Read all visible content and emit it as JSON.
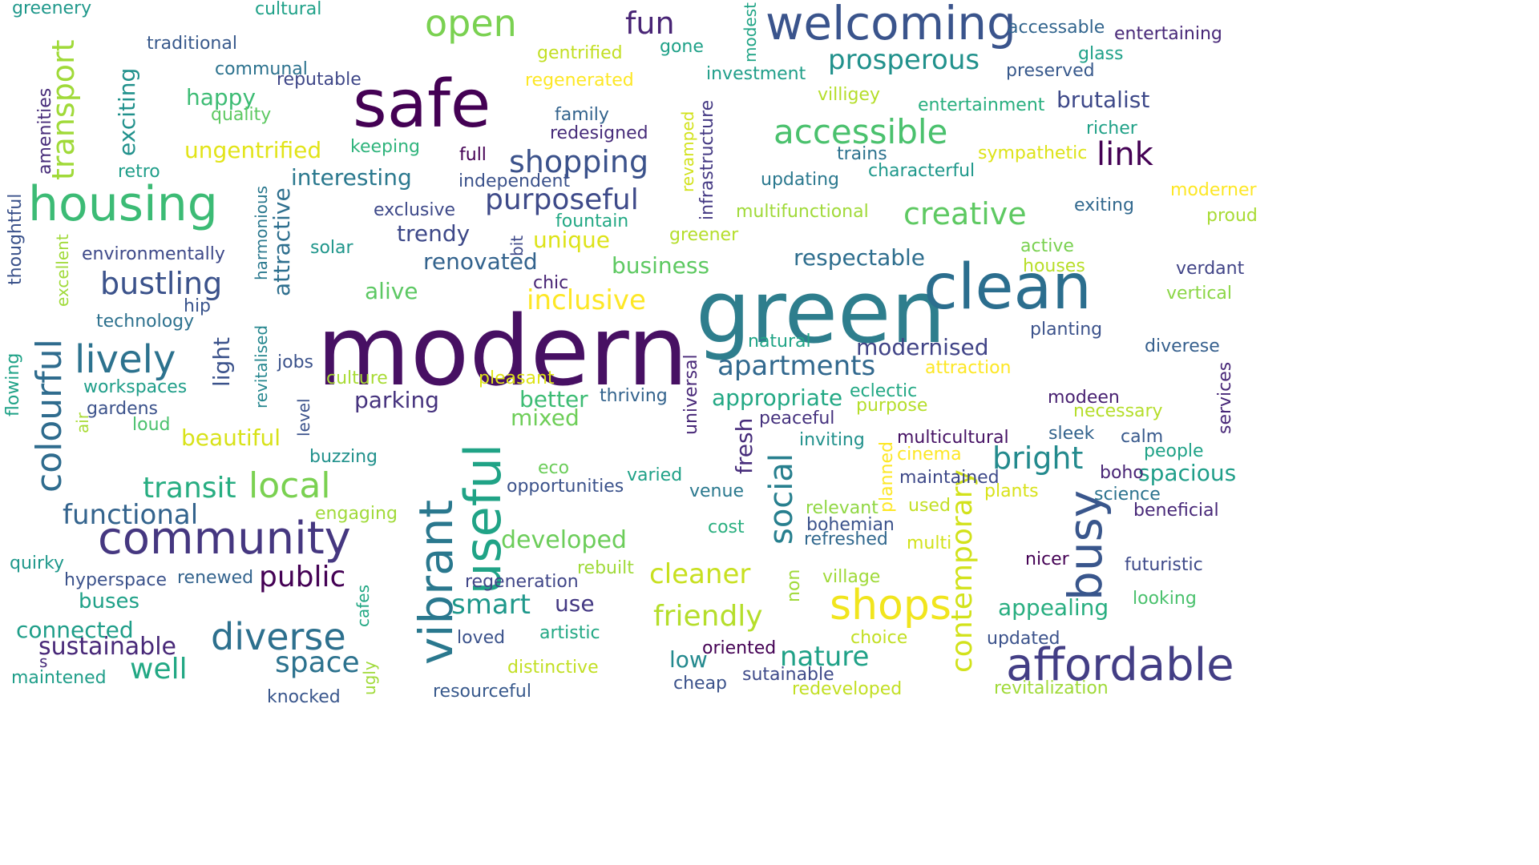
{
  "word_cloud": {
    "words": [
      {
        "text": "modern",
        "color": "#471063"
      },
      {
        "text": "green",
        "color": "#2e7e8d"
      },
      {
        "text": "safe",
        "color": "#440154"
      },
      {
        "text": "clean",
        "color": "#2b6e8e"
      },
      {
        "text": "welcoming",
        "color": "#3a548c"
      },
      {
        "text": "housing",
        "color": "#3cbb75"
      },
      {
        "text": "community",
        "color": "#453780"
      },
      {
        "text": "vibrant",
        "color": "#2a788e"
      },
      {
        "text": "useful",
        "color": "#20a386"
      },
      {
        "text": "affordable",
        "color": "#433e85"
      },
      {
        "text": "busy",
        "color": "#39568c"
      },
      {
        "text": "shops",
        "color": "#f1e51d"
      },
      {
        "text": "lively",
        "color": "#2c728e"
      },
      {
        "text": "diverse",
        "color": "#2d708e"
      },
      {
        "text": "open",
        "color": "#7ad151"
      },
      {
        "text": "accessible",
        "color": "#4ac16d"
      },
      {
        "text": "colourful",
        "color": "#2f6c8e"
      },
      {
        "text": "creative",
        "color": "#5ec962"
      },
      {
        "text": "bustling",
        "color": "#3b528b"
      },
      {
        "text": "link",
        "color": "#440154"
      },
      {
        "text": "local",
        "color": "#7ad151"
      },
      {
        "text": "prosperous",
        "color": "#21918c"
      },
      {
        "text": "shopping",
        "color": "#3b528b"
      },
      {
        "text": "transport",
        "color": "#a0da39"
      },
      {
        "text": "fun",
        "color": "#482475"
      },
      {
        "text": "functional",
        "color": "#33638d"
      },
      {
        "text": "transit",
        "color": "#27ad81"
      },
      {
        "text": "social",
        "color": "#277f8e"
      },
      {
        "text": "contemporary",
        "color": "#d2e21b"
      },
      {
        "text": "apartments",
        "color": "#31688e"
      },
      {
        "text": "purposeful",
        "color": "#3e4a89"
      },
      {
        "text": "friendly",
        "color": "#b5de2b"
      },
      {
        "text": "inclusive",
        "color": "#fde725"
      },
      {
        "text": "public",
        "color": "#440154"
      },
      {
        "text": "space",
        "color": "#2c728e"
      },
      {
        "text": "sustainable",
        "color": "#482878"
      },
      {
        "text": "nature",
        "color": "#1fa187"
      },
      {
        "text": "cleaner",
        "color": "#c8e020"
      },
      {
        "text": "bright",
        "color": "#238a8d"
      },
      {
        "text": "well",
        "color": "#22a884"
      },
      {
        "text": "ungentrified",
        "color": "#e2e418"
      },
      {
        "text": "smart",
        "color": "#1f988b"
      },
      {
        "text": "spacious",
        "color": "#1f9e89"
      },
      {
        "text": "connected",
        "color": "#1f9e89"
      },
      {
        "text": "appealing",
        "color": "#28ae80"
      },
      {
        "text": "exciting",
        "color": "#21918c"
      },
      {
        "text": "interesting",
        "color": "#2a788e"
      },
      {
        "text": "renovated",
        "color": "#33638d"
      },
      {
        "text": "respectable",
        "color": "#2e6e8e"
      },
      {
        "text": "appropriate",
        "color": "#22a884"
      },
      {
        "text": "brutalist",
        "color": "#3e4989"
      },
      {
        "text": "modernised",
        "color": "#414487"
      },
      {
        "text": "developed",
        "color": "#6ccd5a"
      },
      {
        "text": "beautiful",
        "color": "#d8e219"
      },
      {
        "text": "business",
        "color": "#5ec962"
      },
      {
        "text": "parking",
        "color": "#46337e"
      },
      {
        "text": "mixed",
        "color": "#6ece58"
      },
      {
        "text": "trendy",
        "color": "#3e4989"
      },
      {
        "text": "unique",
        "color": "#dde318"
      },
      {
        "text": "attractive",
        "color": "#2e6f8e"
      },
      {
        "text": "fresh",
        "color": "#472d7b"
      },
      {
        "text": "low",
        "color": "#23898e"
      },
      {
        "text": "happy",
        "color": "#3dbc74"
      },
      {
        "text": "alive",
        "color": "#5cc863"
      },
      {
        "text": "better",
        "color": "#3dbc74"
      },
      {
        "text": "buses",
        "color": "#1fa188"
      },
      {
        "text": "use",
        "color": "#443983"
      },
      {
        "text": "light",
        "color": "#3b528b"
      },
      {
        "text": "revitalised",
        "color": "#24868e"
      },
      {
        "text": "harmonious",
        "color": "#2a788e"
      },
      {
        "text": "thriving",
        "color": "#33638d"
      },
      {
        "text": "eclectic",
        "color": "#22a884"
      },
      {
        "text": "infrastructure",
        "color": "#443983"
      },
      {
        "text": "oriented",
        "color": "#440154"
      },
      {
        "text": "multicultural",
        "color": "#471365"
      },
      {
        "text": "inviting",
        "color": "#21918c"
      },
      {
        "text": "peaceful",
        "color": "#46327e"
      },
      {
        "text": "regeneration",
        "color": "#404688"
      },
      {
        "text": "gentrified",
        "color": "#c2df23"
      },
      {
        "text": "regenerated",
        "color": "#fde725"
      },
      {
        "text": "entertaining",
        "color": "#482878"
      },
      {
        "text": "entertainment",
        "color": "#29af7f"
      },
      {
        "text": "characterful",
        "color": "#1f988b"
      },
      {
        "text": "sympathetic",
        "color": "#dde318"
      },
      {
        "text": "investment",
        "color": "#1f9e89"
      },
      {
        "text": "villigey",
        "color": "#b5de2b"
      },
      {
        "text": "accessable",
        "color": "#32658e"
      },
      {
        "text": "preserved",
        "color": "#38598c"
      },
      {
        "text": "glass",
        "color": "#1fa188"
      },
      {
        "text": "richer",
        "color": "#1fa187"
      },
      {
        "text": "trains",
        "color": "#2c728e"
      },
      {
        "text": "updating",
        "color": "#2a788e"
      },
      {
        "text": "multifunctional",
        "color": "#a0da39"
      },
      {
        "text": "exiting",
        "color": "#31688e"
      },
      {
        "text": "moderner",
        "color": "#fde725"
      },
      {
        "text": "proud",
        "color": "#a8db34"
      },
      {
        "text": "active",
        "color": "#7ad151"
      },
      {
        "text": "houses",
        "color": "#b8de29"
      },
      {
        "text": "verdant",
        "color": "#414487"
      },
      {
        "text": "vertical",
        "color": "#8bd646"
      },
      {
        "text": "planting",
        "color": "#3b528b"
      },
      {
        "text": "diverese",
        "color": "#355f8d"
      },
      {
        "text": "attraction",
        "color": "#fde725"
      },
      {
        "text": "natural",
        "color": "#20a486"
      },
      {
        "text": "modeen",
        "color": "#482071"
      },
      {
        "text": "necessary",
        "color": "#b5de2b"
      },
      {
        "text": "purpose",
        "color": "#b5de2b"
      },
      {
        "text": "sleek",
        "color": "#33638d"
      },
      {
        "text": "calm",
        "color": "#38598c"
      },
      {
        "text": "people",
        "color": "#1fa287"
      },
      {
        "text": "cinema",
        "color": "#fde725"
      },
      {
        "text": "maintained",
        "color": "#3e4989"
      },
      {
        "text": "boho",
        "color": "#482475"
      },
      {
        "text": "plants",
        "color": "#d8e219"
      },
      {
        "text": "science",
        "color": "#2c728e"
      },
      {
        "text": "relevant",
        "color": "#90d743"
      },
      {
        "text": "used",
        "color": "#c2df23"
      },
      {
        "text": "beneficial",
        "color": "#482878"
      },
      {
        "text": "bohemian",
        "color": "#3b528b"
      },
      {
        "text": "refreshed",
        "color": "#31688e"
      },
      {
        "text": "multi",
        "color": "#d2e21b"
      },
      {
        "text": "nicer",
        "color": "#440154"
      },
      {
        "text": "futuristic",
        "color": "#3e4a89"
      },
      {
        "text": "village",
        "color": "#a0da39"
      },
      {
        "text": "looking",
        "color": "#4ac16d"
      },
      {
        "text": "updated",
        "color": "#3b528b"
      },
      {
        "text": "choice",
        "color": "#c2df23"
      },
      {
        "text": "sutainable",
        "color": "#3e4a89"
      },
      {
        "text": "redeveloped",
        "color": "#c2df23"
      },
      {
        "text": "revitalization",
        "color": "#a0da39"
      },
      {
        "text": "cheap",
        "color": "#3b528b"
      },
      {
        "text": "greenery",
        "color": "#1f988b"
      },
      {
        "text": "cultural",
        "color": "#1fa188"
      },
      {
        "text": "traditional",
        "color": "#38598c"
      },
      {
        "text": "communal",
        "color": "#2c728e"
      },
      {
        "text": "reputable",
        "color": "#3f4788"
      },
      {
        "text": "quality",
        "color": "#5ec962"
      },
      {
        "text": "keeping",
        "color": "#2fb47c"
      },
      {
        "text": "retro",
        "color": "#1f9e89"
      },
      {
        "text": "amenities",
        "color": "#472c7a"
      },
      {
        "text": "environmentally",
        "color": "#3e4989"
      },
      {
        "text": "excellent",
        "color": "#a0da39"
      },
      {
        "text": "thoughtful",
        "color": "#3b528b"
      },
      {
        "text": "solar",
        "color": "#1f968b"
      },
      {
        "text": "hip",
        "color": "#3a548c"
      },
      {
        "text": "technology",
        "color": "#2d718e"
      },
      {
        "text": "flowing",
        "color": "#1fa287"
      },
      {
        "text": "workspaces",
        "color": "#1f9e89"
      },
      {
        "text": "gardens",
        "color": "#3b528b"
      },
      {
        "text": "air",
        "color": "#a8db34"
      },
      {
        "text": "loud",
        "color": "#4ac16d"
      },
      {
        "text": "jobs",
        "color": "#3b528b"
      },
      {
        "text": "culture",
        "color": "#a8db34"
      },
      {
        "text": "level",
        "color": "#3b528b"
      },
      {
        "text": "buzzing",
        "color": "#21918c"
      },
      {
        "text": "engaging",
        "color": "#a0da39"
      },
      {
        "text": "quirky",
        "color": "#1f988b"
      },
      {
        "text": "hyperspace",
        "color": "#3b528b"
      },
      {
        "text": "renewed",
        "color": "#33638d"
      },
      {
        "text": "maintened",
        "color": "#1f9e89"
      },
      {
        "text": "s",
        "color": "#472c7a"
      },
      {
        "text": "cafes",
        "color": "#22a884"
      },
      {
        "text": "ugly",
        "color": "#a0da39"
      },
      {
        "text": "knocked",
        "color": "#39568c"
      },
      {
        "text": "loved",
        "color": "#3b528b"
      },
      {
        "text": "artistic",
        "color": "#22a884"
      },
      {
        "text": "distinctive",
        "color": "#c2df23"
      },
      {
        "text": "resourceful",
        "color": "#38598c"
      },
      {
        "text": "family",
        "color": "#33638d"
      },
      {
        "text": "redesigned",
        "color": "#472c7a"
      },
      {
        "text": "full",
        "color": "#440154"
      },
      {
        "text": "independent",
        "color": "#3b528b"
      },
      {
        "text": "exclusive",
        "color": "#3e4989"
      },
      {
        "text": "fountain",
        "color": "#22a884"
      },
      {
        "text": "bit",
        "color": "#3e4989"
      },
      {
        "text": "chic",
        "color": "#482475"
      },
      {
        "text": "pleasant",
        "color": "#dde318"
      },
      {
        "text": "eco",
        "color": "#6ccd5a"
      },
      {
        "text": "opportunities",
        "color": "#3b528b"
      },
      {
        "text": "varied",
        "color": "#1fa187"
      },
      {
        "text": "venue",
        "color": "#2a788e"
      },
      {
        "text": "rebuilt",
        "color": "#a0da39"
      },
      {
        "text": "cost",
        "color": "#29af7f"
      },
      {
        "text": "non",
        "color": "#a0da39"
      },
      {
        "text": "planned",
        "color": "#fde725"
      },
      {
        "text": "universal",
        "color": "#482878"
      },
      {
        "text": "gone",
        "color": "#1fa188"
      },
      {
        "text": "modest",
        "color": "#20a486"
      },
      {
        "text": "revamped",
        "color": "#d2e21b"
      },
      {
        "text": "greener",
        "color": "#b5de2b"
      },
      {
        "text": "services",
        "color": "#482878"
      }
    ]
  }
}
